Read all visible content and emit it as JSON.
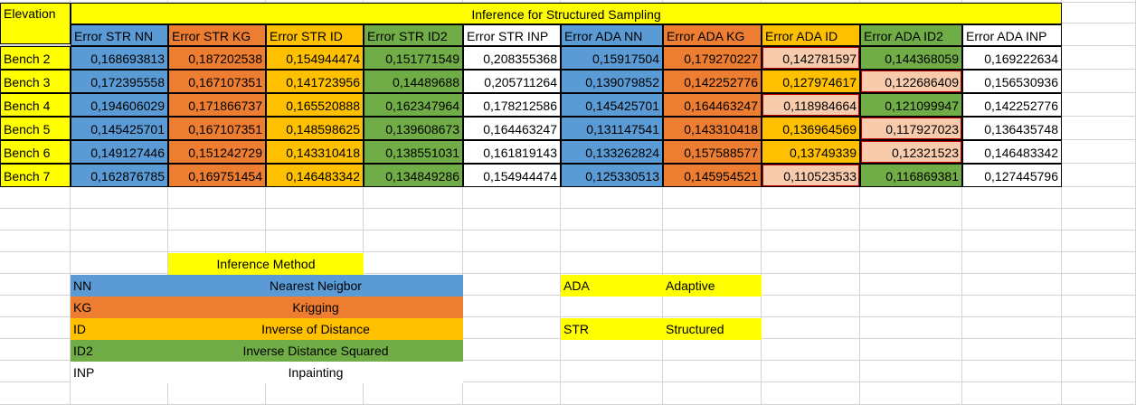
{
  "colors": {
    "yellow": "#ffff00",
    "blue": "#5b9bd5",
    "orange": "#ed7d31",
    "gold": "#ffc000",
    "green": "#70ad47",
    "pink": "#f8cbad",
    "red_border": "#c00000"
  },
  "table": {
    "corner_label": "Elevation",
    "title": "Inference for Structured Sampling",
    "headers": [
      "Error  STR NN",
      "Error STR KG",
      "Error STR ID",
      "Error  STR ID2",
      "Error STR INP",
      "Error  ADA NN",
      "Error  ADA KG",
      "Error  ADA ID",
      "Error  ADA ID2",
      "Error ADA INP"
    ],
    "rows": [
      {
        "label": "Bench 2",
        "values": [
          "0,168693813",
          "0,187202538",
          "0,154944474",
          "0,151771549",
          "0,208355368",
          "0,15917504",
          "0,179270227",
          "0,142781597",
          "0,144368059",
          "0,169222634"
        ]
      },
      {
        "label": "Bench 3",
        "values": [
          "0,172395558",
          "0,167107351",
          "0,141723956",
          "0,14489688",
          "0,205711264",
          "0,139079852",
          "0,142252776",
          "0,127974617",
          "0,122686409",
          "0,156530936"
        ]
      },
      {
        "label": "Bench 4",
        "values": [
          "0,194606029",
          "0,171866737",
          "0,165520888",
          "0,162347964",
          "0,178212586",
          "0,145425701",
          "0,164463247",
          "0,118984664",
          "0,121099947",
          "0,142252776"
        ]
      },
      {
        "label": "Bench 5",
        "values": [
          "0,145425701",
          "0,167107351",
          "0,148598625",
          "0,139608673",
          "0,164463247",
          "0,131147541",
          "0,143310418",
          "0,136964569",
          "0,117927023",
          "0,136435748"
        ]
      },
      {
        "label": "Bench 6",
        "values": [
          "0,149127446",
          "0,151242729",
          "0,143310418",
          "0,138551031",
          "0,161819143",
          "0,133262824",
          "0,157588577",
          "0,13749339",
          "0,12321523",
          "0,146483342"
        ]
      },
      {
        "label": "Bench 7",
        "values": [
          "0,162876785",
          "0,169751454",
          "0,146483342",
          "0,134849286",
          "0,154944474",
          "0,125330513",
          "0,145954521",
          "0,110523533",
          "0,116869381",
          "0,127445796"
        ]
      }
    ],
    "highlighted_cells": {
      "Error  ADA ID": [
        "Bench 2",
        "Bench 4",
        "Bench 7"
      ],
      "Error  ADA ID2": [
        "Bench 3",
        "Bench 5",
        "Bench 6"
      ]
    }
  },
  "legend": {
    "title": "Inference Method",
    "items": [
      {
        "code": "NN",
        "name": "Nearest Neigbor",
        "color": "#5b9bd5"
      },
      {
        "code": "KG",
        "name": "Krigging",
        "color": "#ed7d31"
      },
      {
        "code": "ID",
        "name": "Inverse of Distance",
        "color": "#ffc000"
      },
      {
        "code": "ID2",
        "name": "Inverse Distance Squared",
        "color": "#70ad47"
      },
      {
        "code": "INP",
        "name": "Inpainting",
        "color": "#ffffff"
      }
    ]
  },
  "abbreviations": [
    {
      "code": "ADA",
      "name": "Adaptive"
    },
    {
      "code": "STR",
      "name": "Structured"
    }
  ]
}
